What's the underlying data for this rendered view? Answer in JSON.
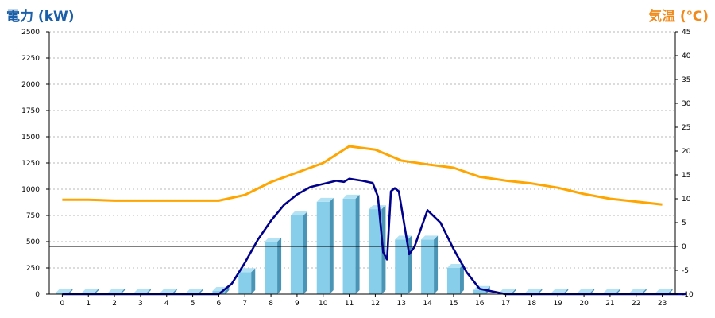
{
  "chart_data": {
    "type": "bar",
    "left_axis_title": "電力 (kW)",
    "right_axis_title": "気温 (℃)",
    "categories": [
      "0",
      "1",
      "2",
      "3",
      "4",
      "5",
      "6",
      "7",
      "8",
      "9",
      "10",
      "11",
      "12",
      "13",
      "14",
      "15",
      "16",
      "17",
      "18",
      "19",
      "20",
      "21",
      "22",
      "23"
    ],
    "y_left": {
      "min": 0,
      "max": 2500,
      "ticks": [
        0,
        250,
        500,
        750,
        1000,
        1250,
        1500,
        1750,
        2000,
        2250,
        2500
      ]
    },
    "y_right": {
      "min": -10,
      "max": 45,
      "ticks": [
        -10,
        -5,
        0,
        5,
        10,
        15,
        20,
        25,
        30,
        35,
        40,
        45
      ]
    },
    "grid": true,
    "series": [
      {
        "kind": "bar",
        "axis": "left",
        "color": "#87ceeb",
        "values": [
          15,
          15,
          15,
          15,
          15,
          15,
          30,
          210,
          500,
          750,
          880,
          910,
          810,
          520,
          520,
          250,
          40,
          15,
          15,
          15,
          15,
          15,
          15,
          15
        ]
      },
      {
        "kind": "line",
        "axis": "left",
        "color": "#00008b",
        "x": [
          0,
          6,
          6.5,
          7,
          7.5,
          8,
          8.5,
          9,
          9.5,
          10,
          10.5,
          10.8,
          11,
          11.5,
          11.9,
          12.1,
          12.3,
          12.45,
          12.6,
          12.75,
          12.9,
          13.3,
          13.5,
          14,
          14.5,
          15,
          15.5,
          16,
          17,
          23.9
        ],
        "values": [
          0,
          0,
          100,
          300,
          520,
          700,
          850,
          950,
          1020,
          1050,
          1080,
          1070,
          1100,
          1080,
          1060,
          930,
          400,
          330,
          980,
          1010,
          980,
          380,
          450,
          800,
          680,
          430,
          210,
          50,
          0,
          0
        ]
      },
      {
        "kind": "line",
        "axis": "right",
        "color": "#ffa500",
        "x": [
          0,
          1,
          2,
          3,
          4,
          5,
          6,
          7,
          8,
          9,
          10,
          11,
          12,
          13,
          14,
          15,
          16,
          17,
          18,
          19,
          20,
          21,
          22,
          23
        ],
        "values": [
          9.8,
          9.8,
          9.6,
          9.6,
          9.6,
          9.6,
          9.6,
          10.8,
          13.5,
          15.5,
          17.5,
          21,
          20.3,
          18,
          17.2,
          16.5,
          14.6,
          13.8,
          13.2,
          12.3,
          11,
          10,
          9.4,
          8.8
        ]
      }
    ],
    "zero_line_right": 0
  }
}
